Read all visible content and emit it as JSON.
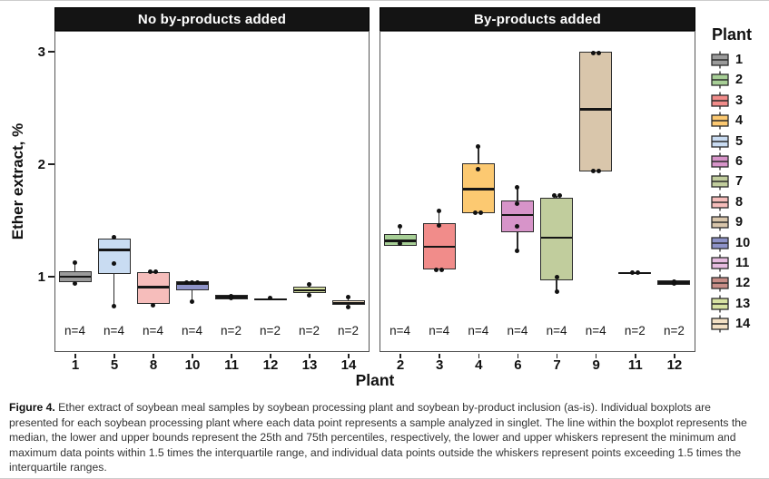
{
  "figure": {
    "caption_label": "Figure 4.",
    "caption_text": " Ether extract of soybean meal samples by soybean processing plant and soybean by-product inclusion (as-is). Individual boxplots are presented for each soybean processing plant where each data point represents a sample analyzed in singlet. The line within the boxplot represents the median, the lower and upper bounds represent the 25th and 75th percentiles, respectively, the lower and upper whiskers represent the minimum and maximum data points within 1.5 times the interquartile range, and individual data points outside the whiskers represent points exceeding 1.5 times the interquartile ranges."
  },
  "chart_data": {
    "type": "box",
    "xlabel": "Plant",
    "ylabel": "Ether extract, %",
    "yticks": [
      1,
      2,
      3
    ],
    "ylim": [
      0.3,
      3.17
    ],
    "grid": false,
    "legend_position": "right",
    "legend": {
      "title": "Plant",
      "entries": [
        {
          "label": "1",
          "color": "#9b9b9b"
        },
        {
          "label": "2",
          "color": "#a7cf96"
        },
        {
          "label": "3",
          "color": "#f18c8a"
        },
        {
          "label": "4",
          "color": "#fcc971"
        },
        {
          "label": "5",
          "color": "#c9dcf2"
        },
        {
          "label": "6",
          "color": "#d794c9"
        },
        {
          "label": "7",
          "color": "#c1cd9d"
        },
        {
          "label": "8",
          "color": "#f6bdbb"
        },
        {
          "label": "9",
          "color": "#d9c6ab"
        },
        {
          "label": "10",
          "color": "#8e93c8"
        },
        {
          "label": "11",
          "color": "#e7bce0"
        },
        {
          "label": "12",
          "color": "#c88e88"
        },
        {
          "label": "13",
          "color": "#d7e2a2"
        },
        {
          "label": "14",
          "color": "#f3e0c4"
        }
      ]
    },
    "panels": [
      {
        "title": "No by-products added",
        "boxes": [
          {
            "plant": "1",
            "n_label": "n=4",
            "q1": 0.94,
            "median": 0.99,
            "q3": 1.04,
            "whisker_low": 0.93,
            "whisker_high": 1.12,
            "points": [
              1.12,
              0.93
            ]
          },
          {
            "plant": "5",
            "n_label": "n=4",
            "q1": 1.02,
            "median": 1.23,
            "q3": 1.33,
            "whisker_low": 0.73,
            "whisker_high": 1.34,
            "points": [
              1.34,
              1.11,
              0.73
            ]
          },
          {
            "plant": "8",
            "n_label": "n=4",
            "q1": 0.75,
            "median": 0.9,
            "q3": 1.03,
            "whisker_low": 0.74,
            "whisker_high": 1.04,
            "points": [
              1.04,
              1.04,
              0.74
            ]
          },
          {
            "plant": "10",
            "n_label": "n=4",
            "q1": 0.87,
            "median": 0.93,
            "q3": 0.95,
            "whisker_low": 0.77,
            "whisker_high": 0.95,
            "points": [
              0.94,
              0.94,
              0.94,
              0.77
            ]
          },
          {
            "plant": "11",
            "n_label": "n=2",
            "q1": 0.79,
            "median": 0.81,
            "q3": 0.83,
            "whisker_low": 0.79,
            "whisker_high": 0.83,
            "points": [
              0.82,
              0.8
            ]
          },
          {
            "plant": "12",
            "n_label": "n=2",
            "q1": 0.78,
            "median": 0.79,
            "q3": 0.8,
            "whisker_low": 0.78,
            "whisker_high": 0.8,
            "points": [
              0.8
            ]
          },
          {
            "plant": "13",
            "n_label": "n=2",
            "q1": 0.85,
            "median": 0.87,
            "q3": 0.9,
            "whisker_low": 0.83,
            "whisker_high": 0.92,
            "points": [
              0.92,
              0.83
            ]
          },
          {
            "plant": "14",
            "n_label": "n=2",
            "q1": 0.74,
            "median": 0.76,
            "q3": 0.78,
            "whisker_low": 0.72,
            "whisker_high": 0.81,
            "points": [
              0.81,
              0.72
            ]
          }
        ]
      },
      {
        "title": "By-products added",
        "boxes": [
          {
            "plant": "2",
            "n_label": "n=4",
            "q1": 1.27,
            "median": 1.31,
            "q3": 1.37,
            "whisker_low": 1.27,
            "whisker_high": 1.44,
            "points": [
              1.44,
              1.29
            ]
          },
          {
            "plant": "3",
            "n_label": "n=4",
            "q1": 1.06,
            "median": 1.26,
            "q3": 1.47,
            "whisker_low": 1.06,
            "whisker_high": 1.58,
            "points": [
              1.58,
              1.45,
              1.05,
              1.05
            ]
          },
          {
            "plant": "4",
            "n_label": "n=4",
            "q1": 1.56,
            "median": 1.77,
            "q3": 2.0,
            "whisker_low": 1.56,
            "whisker_high": 2.15,
            "points": [
              2.15,
              1.95,
              1.56,
              1.56
            ]
          },
          {
            "plant": "6",
            "n_label": "n=4",
            "q1": 1.39,
            "median": 1.54,
            "q3": 1.67,
            "whisker_low": 1.22,
            "whisker_high": 1.79,
            "points": [
              1.79,
              1.64,
              1.44,
              1.22
            ]
          },
          {
            "plant": "7",
            "n_label": "n=4",
            "q1": 0.96,
            "median": 1.34,
            "q3": 1.69,
            "whisker_low": 0.86,
            "whisker_high": 1.71,
            "points": [
              1.71,
              1.71,
              0.99,
              0.86
            ]
          },
          {
            "plant": "9",
            "n_label": "n=4",
            "q1": 1.93,
            "median": 2.48,
            "q3": 2.99,
            "whisker_low": 1.93,
            "whisker_high": 2.99,
            "points": [
              2.98,
              2.98,
              1.93,
              1.93
            ]
          },
          {
            "plant": "11",
            "n_label": "n=2",
            "q1": 1.02,
            "median": 1.025,
            "q3": 1.03,
            "whisker_low": 1.02,
            "whisker_high": 1.03,
            "points": [
              1.03,
              1.03
            ]
          },
          {
            "plant": "12",
            "n_label": "n=2",
            "q1": 0.92,
            "median": 0.94,
            "q3": 0.96,
            "whisker_low": 0.92,
            "whisker_high": 0.96,
            "points": [
              0.95,
              0.93
            ]
          }
        ]
      }
    ]
  }
}
